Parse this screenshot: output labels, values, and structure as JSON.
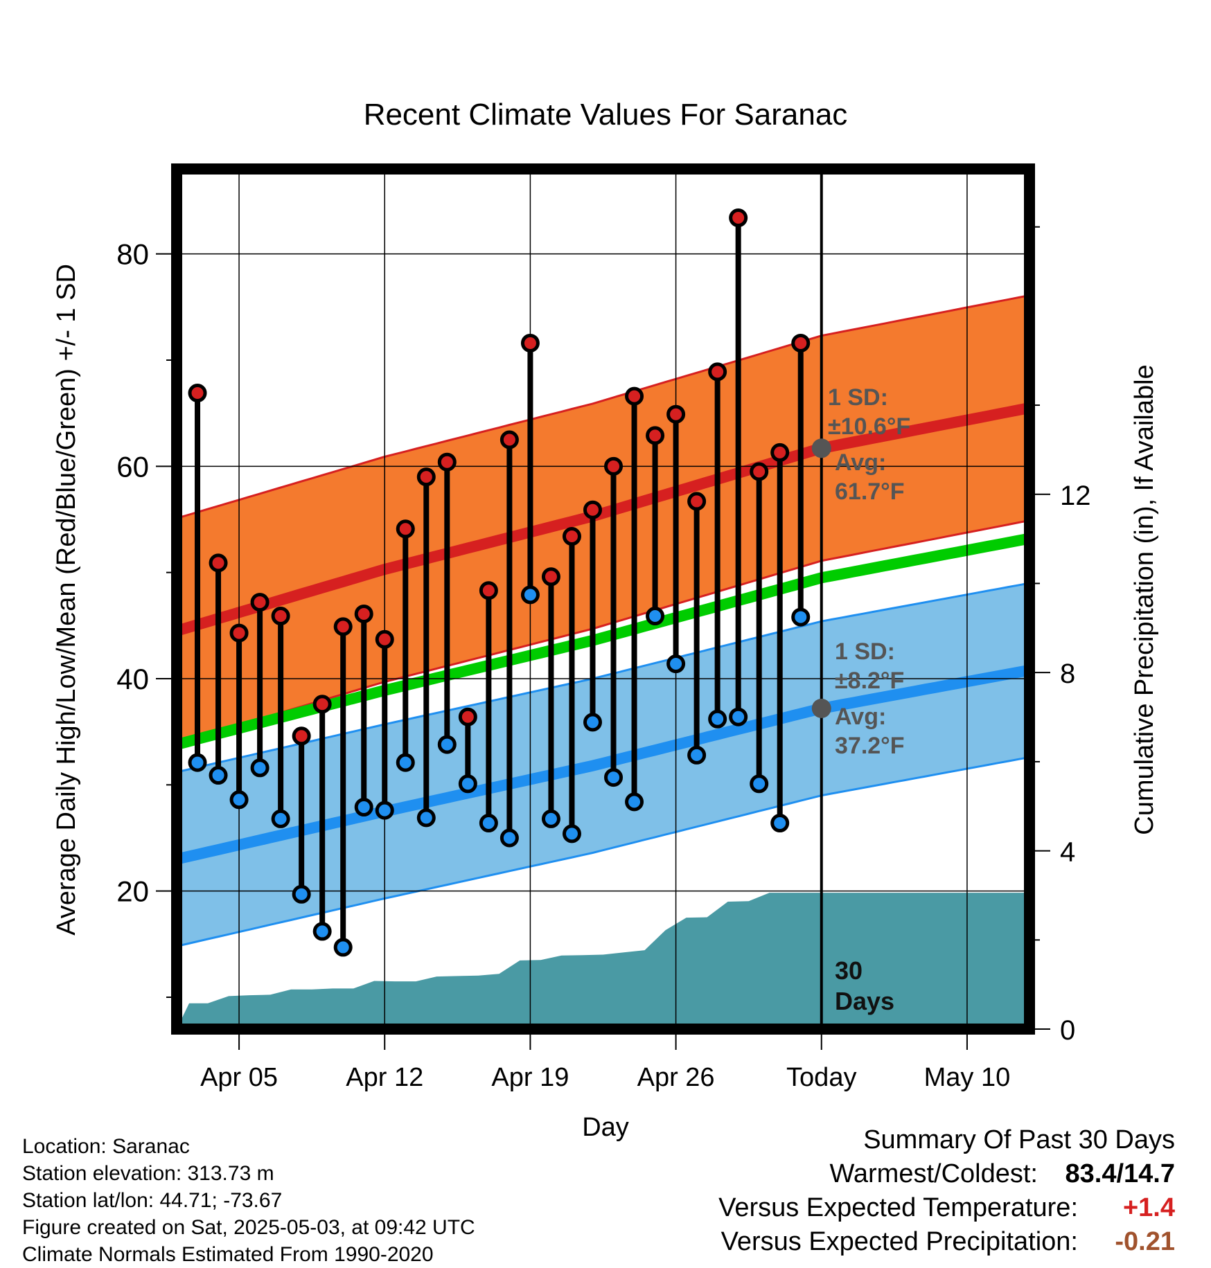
{
  "title": "Recent Climate Values For Saranac",
  "xlabel": "Day",
  "ylabel_left": "Average Daily High/Low/Mean (Red/Blue/Green) +/- 1 SD",
  "ylabel_right": "Cumulative Precipitation (in), If Available",
  "colors": {
    "high_band": "#f47a2e",
    "high_line": "#d62020",
    "low_band": "#7fc0e8",
    "low_line": "#1f8ff0",
    "mean_line": "#00cc00",
    "precip": "#4a9aa4",
    "high_dot": "#d62020",
    "low_dot": "#1f8ff0",
    "annotation": "#555555",
    "anomaly_temp": "#d62020",
    "anomaly_precip": "#a0522d"
  },
  "annotations": {
    "high_sd_label": "1 SD:",
    "high_sd_value": "±10.6°F",
    "high_avg_label": "Avg:",
    "high_avg_value": "61.7°F",
    "low_sd_label": "1 SD:",
    "low_sd_value": "±8.2°F",
    "low_avg_label": "Avg:",
    "low_avg_value": "37.2°F",
    "days_number": "30",
    "days_word": "Days"
  },
  "info": {
    "location": "Location: Saranac",
    "elevation": "Station elevation: 313.73 m",
    "latlon": "Station lat/lon: 44.71; -73.67",
    "created": "Figure created on Sat, 2025-05-03, at 09:42 UTC",
    "normals": "Climate Normals Estimated From 1990-2020"
  },
  "summary": {
    "heading": "Summary Of Past 30 Days",
    "warmest_label": "Warmest/Coldest:",
    "warmest_value": "83.4/14.7",
    "temp_label": "Versus Expected Temperature:",
    "temp_value": "+1.4",
    "precip_label": "Versus Expected Precipitation:",
    "precip_value": "-0.21"
  },
  "chart_data": {
    "type": "line",
    "x_domain": [
      0,
      41
    ],
    "x_ticks": [
      {
        "day": 3,
        "label": "Apr 05"
      },
      {
        "day": 10,
        "label": "Apr 12"
      },
      {
        "day": 17,
        "label": "Apr 19"
      },
      {
        "day": 24,
        "label": "Apr 26"
      },
      {
        "day": 31,
        "label": "Today"
      },
      {
        "day": 38,
        "label": "May 10"
      }
    ],
    "today": 31,
    "y_left": {
      "range": [
        7,
        88
      ],
      "ticks": [
        20,
        40,
        60,
        80
      ],
      "minor_ticks": [
        10,
        30,
        50,
        70
      ]
    },
    "y_right": {
      "range": [
        0,
        19.3
      ],
      "ticks": [
        0,
        4,
        8,
        12
      ]
    },
    "days": [
      1,
      2,
      3,
      4,
      5,
      6,
      7,
      8,
      9,
      10,
      11,
      12,
      13,
      14,
      15,
      16,
      17,
      18,
      19,
      20,
      21,
      22,
      23,
      24,
      25,
      26,
      27,
      28,
      29,
      30
    ],
    "highs": [
      66.9,
      50.9,
      44.3,
      47.2,
      45.9,
      34.6,
      37.6,
      44.9,
      46.1,
      43.7,
      54.1,
      59.0,
      60.4,
      36.4,
      48.3,
      62.5,
      71.6,
      49.6,
      53.4,
      55.9,
      60.0,
      66.6,
      62.9,
      64.9,
      56.7,
      68.9,
      83.4,
      59.5,
      61.3,
      71.6
    ],
    "lows": [
      32.1,
      30.9,
      28.6,
      31.6,
      26.8,
      19.7,
      16.2,
      14.7,
      27.9,
      27.6,
      32.1,
      26.9,
      33.8,
      30.1,
      26.4,
      25.0,
      47.9,
      26.8,
      25.4,
      35.9,
      30.7,
      28.4,
      45.9,
      41.4,
      32.8,
      36.2,
      36.4,
      30.1,
      26.4,
      45.8
    ],
    "normal_high": {
      "x": [
        0,
        10,
        20,
        31,
        41
      ],
      "values": [
        44.5,
        50.3,
        55.3,
        61.7,
        65.5
      ]
    },
    "normal_high_sd": 10.6,
    "normal_low": {
      "x": [
        0,
        10,
        20,
        31,
        41
      ],
      "values": [
        23.0,
        27.5,
        31.8,
        37.2,
        40.8
      ]
    },
    "normal_low_sd": 8.2,
    "normal_mean": {
      "x": [
        0,
        10,
        20,
        31,
        41
      ],
      "values": [
        33.8,
        38.9,
        43.6,
        49.5,
        53.2
      ]
    },
    "precip_cumulative": {
      "x": [
        0,
        0.6,
        1.5,
        2.5,
        3.5,
        4.5,
        5.5,
        6.5,
        7.5,
        8.5,
        9.5,
        10.5,
        11.5,
        12.5,
        13.5,
        14.5,
        15.5,
        16.5,
        17.5,
        18.5,
        19.5,
        20.5,
        21.5,
        22.5,
        23.5,
        24.5,
        25.5,
        26.5,
        27.5,
        28.5,
        29.5,
        30.5,
        31,
        41
      ],
      "values": [
        0,
        0.58,
        0.58,
        0.74,
        0.76,
        0.77,
        0.89,
        0.89,
        0.91,
        0.91,
        1.08,
        1.07,
        1.07,
        1.18,
        1.19,
        1.2,
        1.24,
        1.54,
        1.55,
        1.65,
        1.66,
        1.67,
        1.72,
        1.77,
        2.22,
        2.5,
        2.51,
        2.86,
        2.87,
        3.06,
        3.06,
        3.06,
        3.06,
        3.06
      ]
    }
  }
}
